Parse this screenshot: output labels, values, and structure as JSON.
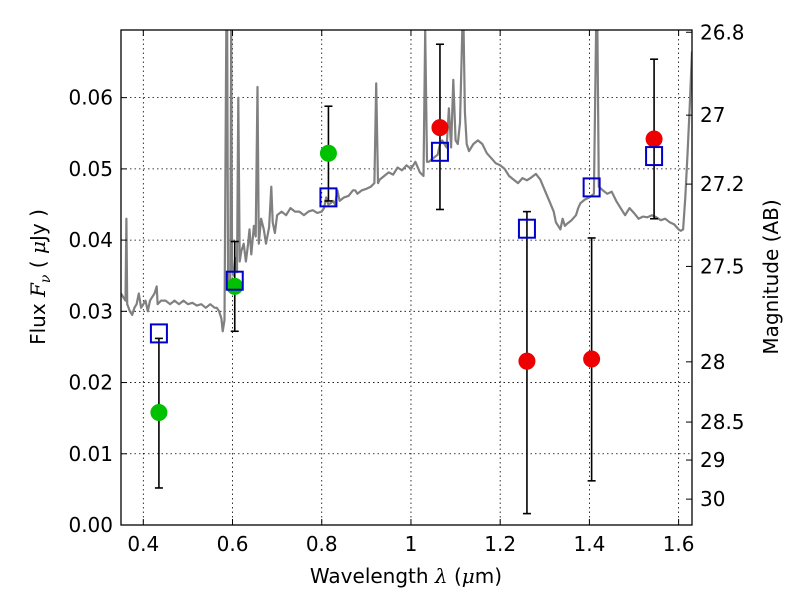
{
  "chart_data": {
    "type": "scatter",
    "title": "",
    "xlabel": "Wavelength  λ (μm)",
    "ylabel": "Flux  F_ν  ( μJy )",
    "ylabel_right": "Magnitude (AB)",
    "xlim": [
      0.35,
      1.63
    ],
    "ylim": [
      0.0,
      0.0695
    ],
    "grid": true,
    "x_ticks": [
      0.4,
      0.6,
      0.8,
      1.0,
      1.2,
      1.4,
      1.6
    ],
    "x_tick_labels": [
      "0.4",
      "0.6",
      "0.8",
      "1",
      "1.2",
      "1.4",
      "1.6"
    ],
    "y_ticks": [
      0.0,
      0.01,
      0.02,
      0.03,
      0.04,
      0.05,
      0.06
    ],
    "y_tick_labels": [
      "0.00",
      "0.01",
      "0.02",
      "0.03",
      "0.04",
      "0.05",
      "0.06"
    ],
    "right_ticks": [
      {
        "label": "26.8",
        "mag": 26.8
      },
      {
        "label": "27",
        "mag": 27.0
      },
      {
        "label": "27.2",
        "mag": 27.2
      },
      {
        "label": "27.5",
        "mag": 27.5
      },
      {
        "label": "28",
        "mag": 28.0
      },
      {
        "label": "28.5",
        "mag": 28.5
      },
      {
        "label": "29",
        "mag": 29.0
      },
      {
        "label": "30",
        "mag": 30.0
      }
    ],
    "model_spectrum": {
      "color": "#808080",
      "points": [
        [
          0.35,
          0.0325
        ],
        [
          0.355,
          0.032
        ],
        [
          0.36,
          0.0315
        ],
        [
          0.362,
          0.043
        ],
        [
          0.364,
          0.031
        ],
        [
          0.37,
          0.03
        ],
        [
          0.375,
          0.0295
        ],
        [
          0.38,
          0.0305
        ],
        [
          0.385,
          0.031
        ],
        [
          0.39,
          0.0325
        ],
        [
          0.395,
          0.0305
        ],
        [
          0.4,
          0.031
        ],
        [
          0.405,
          0.0315
        ],
        [
          0.41,
          0.03
        ],
        [
          0.415,
          0.0315
        ],
        [
          0.42,
          0.032
        ],
        [
          0.425,
          0.0325
        ],
        [
          0.43,
          0.0335
        ],
        [
          0.432,
          0.031
        ],
        [
          0.44,
          0.0315
        ],
        [
          0.45,
          0.0315
        ],
        [
          0.46,
          0.031
        ],
        [
          0.47,
          0.0315
        ],
        [
          0.48,
          0.031
        ],
        [
          0.49,
          0.0315
        ],
        [
          0.5,
          0.031
        ],
        [
          0.51,
          0.0312
        ],
        [
          0.52,
          0.0308
        ],
        [
          0.53,
          0.031
        ],
        [
          0.54,
          0.0305
        ],
        [
          0.55,
          0.031
        ],
        [
          0.56,
          0.0305
        ],
        [
          0.565,
          0.0305
        ],
        [
          0.57,
          0.03
        ],
        [
          0.575,
          0.029
        ],
        [
          0.578,
          0.0272
        ],
        [
          0.582,
          0.0288
        ],
        [
          0.586,
          0.0695
        ],
        [
          0.588,
          0.0695
        ],
        [
          0.59,
          0.033
        ],
        [
          0.595,
          0.0335
        ],
        [
          0.597,
          0.0695
        ],
        [
          0.599,
          0.036
        ],
        [
          0.602,
          0.035
        ],
        [
          0.606,
          0.0375
        ],
        [
          0.61,
          0.0355
        ],
        [
          0.613,
          0.06
        ],
        [
          0.616,
          0.037
        ],
        [
          0.62,
          0.0385
        ],
        [
          0.625,
          0.0395
        ],
        [
          0.63,
          0.037
        ],
        [
          0.635,
          0.0395
        ],
        [
          0.638,
          0.0415
        ],
        [
          0.642,
          0.038
        ],
        [
          0.648,
          0.042
        ],
        [
          0.652,
          0.0405
        ],
        [
          0.656,
          0.0615
        ],
        [
          0.659,
          0.0395
        ],
        [
          0.664,
          0.043
        ],
        [
          0.67,
          0.0415
        ],
        [
          0.675,
          0.0395
        ],
        [
          0.682,
          0.0418
        ],
        [
          0.687,
          0.0475
        ],
        [
          0.69,
          0.0425
        ],
        [
          0.695,
          0.041
        ],
        [
          0.7,
          0.0435
        ],
        [
          0.71,
          0.044
        ],
        [
          0.72,
          0.0435
        ],
        [
          0.73,
          0.0445
        ],
        [
          0.74,
          0.044
        ],
        [
          0.75,
          0.044
        ],
        [
          0.76,
          0.0435
        ],
        [
          0.77,
          0.044
        ],
        [
          0.78,
          0.0442
        ],
        [
          0.79,
          0.0438
        ],
        [
          0.8,
          0.044
        ],
        [
          0.805,
          0.0445
        ],
        [
          0.81,
          0.046
        ],
        [
          0.815,
          0.045
        ],
        [
          0.82,
          0.0452
        ],
        [
          0.825,
          0.0455
        ],
        [
          0.83,
          0.045
        ],
        [
          0.835,
          0.047
        ],
        [
          0.84,
          0.0455
        ],
        [
          0.85,
          0.046
        ],
        [
          0.86,
          0.0462
        ],
        [
          0.87,
          0.047
        ],
        [
          0.875,
          0.047
        ],
        [
          0.88,
          0.0465
        ],
        [
          0.89,
          0.047
        ],
        [
          0.9,
          0.0472
        ],
        [
          0.91,
          0.0475
        ],
        [
          0.918,
          0.048
        ],
        [
          0.922,
          0.062
        ],
        [
          0.926,
          0.048
        ],
        [
          0.93,
          0.0485
        ],
        [
          0.94,
          0.049
        ],
        [
          0.95,
          0.0495
        ],
        [
          0.96,
          0.0492
        ],
        [
          0.97,
          0.0502
        ],
        [
          0.98,
          0.0498
        ],
        [
          0.99,
          0.0505
        ],
        [
          1.0,
          0.05
        ],
        [
          1.01,
          0.051
        ],
        [
          1.02,
          0.0495
        ],
        [
          1.028,
          0.049
        ],
        [
          1.032,
          0.0695
        ],
        [
          1.036,
          0.051
        ],
        [
          1.04,
          0.051
        ],
        [
          1.05,
          0.0515
        ],
        [
          1.06,
          0.052
        ],
        [
          1.065,
          0.0535
        ],
        [
          1.07,
          0.054
        ],
        [
          1.08,
          0.053
        ],
        [
          1.085,
          0.0585
        ],
        [
          1.09,
          0.053
        ],
        [
          1.095,
          0.0625
        ],
        [
          1.1,
          0.054
        ],
        [
          1.105,
          0.0535
        ],
        [
          1.11,
          0.0565
        ],
        [
          1.115,
          0.0695
        ],
        [
          1.118,
          0.0695
        ],
        [
          1.121,
          0.058
        ],
        [
          1.125,
          0.0535
        ],
        [
          1.13,
          0.0525
        ],
        [
          1.14,
          0.0535
        ],
        [
          1.15,
          0.054
        ],
        [
          1.16,
          0.0535
        ],
        [
          1.17,
          0.0522
        ],
        [
          1.18,
          0.0515
        ],
        [
          1.19,
          0.0508
        ],
        [
          1.2,
          0.0505
        ],
        [
          1.21,
          0.05
        ],
        [
          1.22,
          0.049
        ],
        [
          1.23,
          0.0485
        ],
        [
          1.24,
          0.048
        ],
        [
          1.25,
          0.0487
        ],
        [
          1.26,
          0.0484
        ],
        [
          1.27,
          0.0488
        ],
        [
          1.28,
          0.0493
        ],
        [
          1.29,
          0.0485
        ],
        [
          1.3,
          0.047
        ],
        [
          1.31,
          0.0455
        ],
        [
          1.32,
          0.044
        ],
        [
          1.325,
          0.0425
        ],
        [
          1.33,
          0.042
        ],
        [
          1.335,
          0.0415
        ],
        [
          1.34,
          0.043
        ],
        [
          1.345,
          0.042
        ],
        [
          1.35,
          0.0423
        ],
        [
          1.36,
          0.0428
        ],
        [
          1.37,
          0.0435
        ],
        [
          1.375,
          0.0445
        ],
        [
          1.38,
          0.0452
        ],
        [
          1.39,
          0.0457
        ],
        [
          1.4,
          0.046
        ],
        [
          1.41,
          0.0465
        ],
        [
          1.415,
          0.0695
        ],
        [
          1.418,
          0.0695
        ],
        [
          1.421,
          0.0475
        ],
        [
          1.43,
          0.047
        ],
        [
          1.44,
          0.0465
        ],
        [
          1.45,
          0.0468
        ],
        [
          1.46,
          0.0455
        ],
        [
          1.47,
          0.0445
        ],
        [
          1.48,
          0.0435
        ],
        [
          1.49,
          0.0445
        ],
        [
          1.5,
          0.0438
        ],
        [
          1.51,
          0.043
        ],
        [
          1.52,
          0.0433
        ],
        [
          1.53,
          0.0432
        ],
        [
          1.54,
          0.0435
        ],
        [
          1.55,
          0.0432
        ],
        [
          1.56,
          0.0428
        ],
        [
          1.57,
          0.043
        ],
        [
          1.58,
          0.0425
        ],
        [
          1.59,
          0.0422
        ],
        [
          1.6,
          0.0415
        ],
        [
          1.605,
          0.0413
        ],
        [
          1.61,
          0.0415
        ],
        [
          1.615,
          0.046
        ],
        [
          1.62,
          0.052
        ],
        [
          1.625,
          0.059
        ],
        [
          1.63,
          0.0665
        ]
      ]
    },
    "series": [
      {
        "marker": "circle",
        "color": "#00c000",
        "points": [
          {
            "x": 0.435,
            "y": 0.0158,
            "yerr_low": 0.0052,
            "yerr_high": 0.0262
          },
          {
            "x": 0.605,
            "y": 0.0335,
            "yerr_low": 0.0272,
            "yerr_high": 0.0398
          },
          {
            "x": 0.815,
            "y": 0.0522,
            "yerr_low": 0.0455,
            "yerr_high": 0.0588
          }
        ]
      },
      {
        "marker": "circle",
        "color": "#ee0000",
        "points": [
          {
            "x": 1.065,
            "y": 0.0558,
            "yerr_low": 0.0443,
            "yerr_high": 0.0675
          },
          {
            "x": 1.26,
            "y": 0.023,
            "yerr_low": 0.0016,
            "yerr_high": 0.044
          },
          {
            "x": 1.405,
            "y": 0.0233,
            "yerr_low": 0.0062,
            "yerr_high": 0.0403
          },
          {
            "x": 1.545,
            "y": 0.0542,
            "yerr_low": 0.043,
            "yerr_high": 0.0654
          }
        ]
      },
      {
        "marker": "open-square",
        "color": "#0000cc",
        "points": [
          {
            "x": 0.435,
            "y": 0.0269
          },
          {
            "x": 0.605,
            "y": 0.0343
          },
          {
            "x": 0.815,
            "y": 0.046
          },
          {
            "x": 1.065,
            "y": 0.0524
          },
          {
            "x": 1.26,
            "y": 0.0416
          },
          {
            "x": 1.405,
            "y": 0.0474
          },
          {
            "x": 1.545,
            "y": 0.0518
          }
        ]
      }
    ]
  }
}
